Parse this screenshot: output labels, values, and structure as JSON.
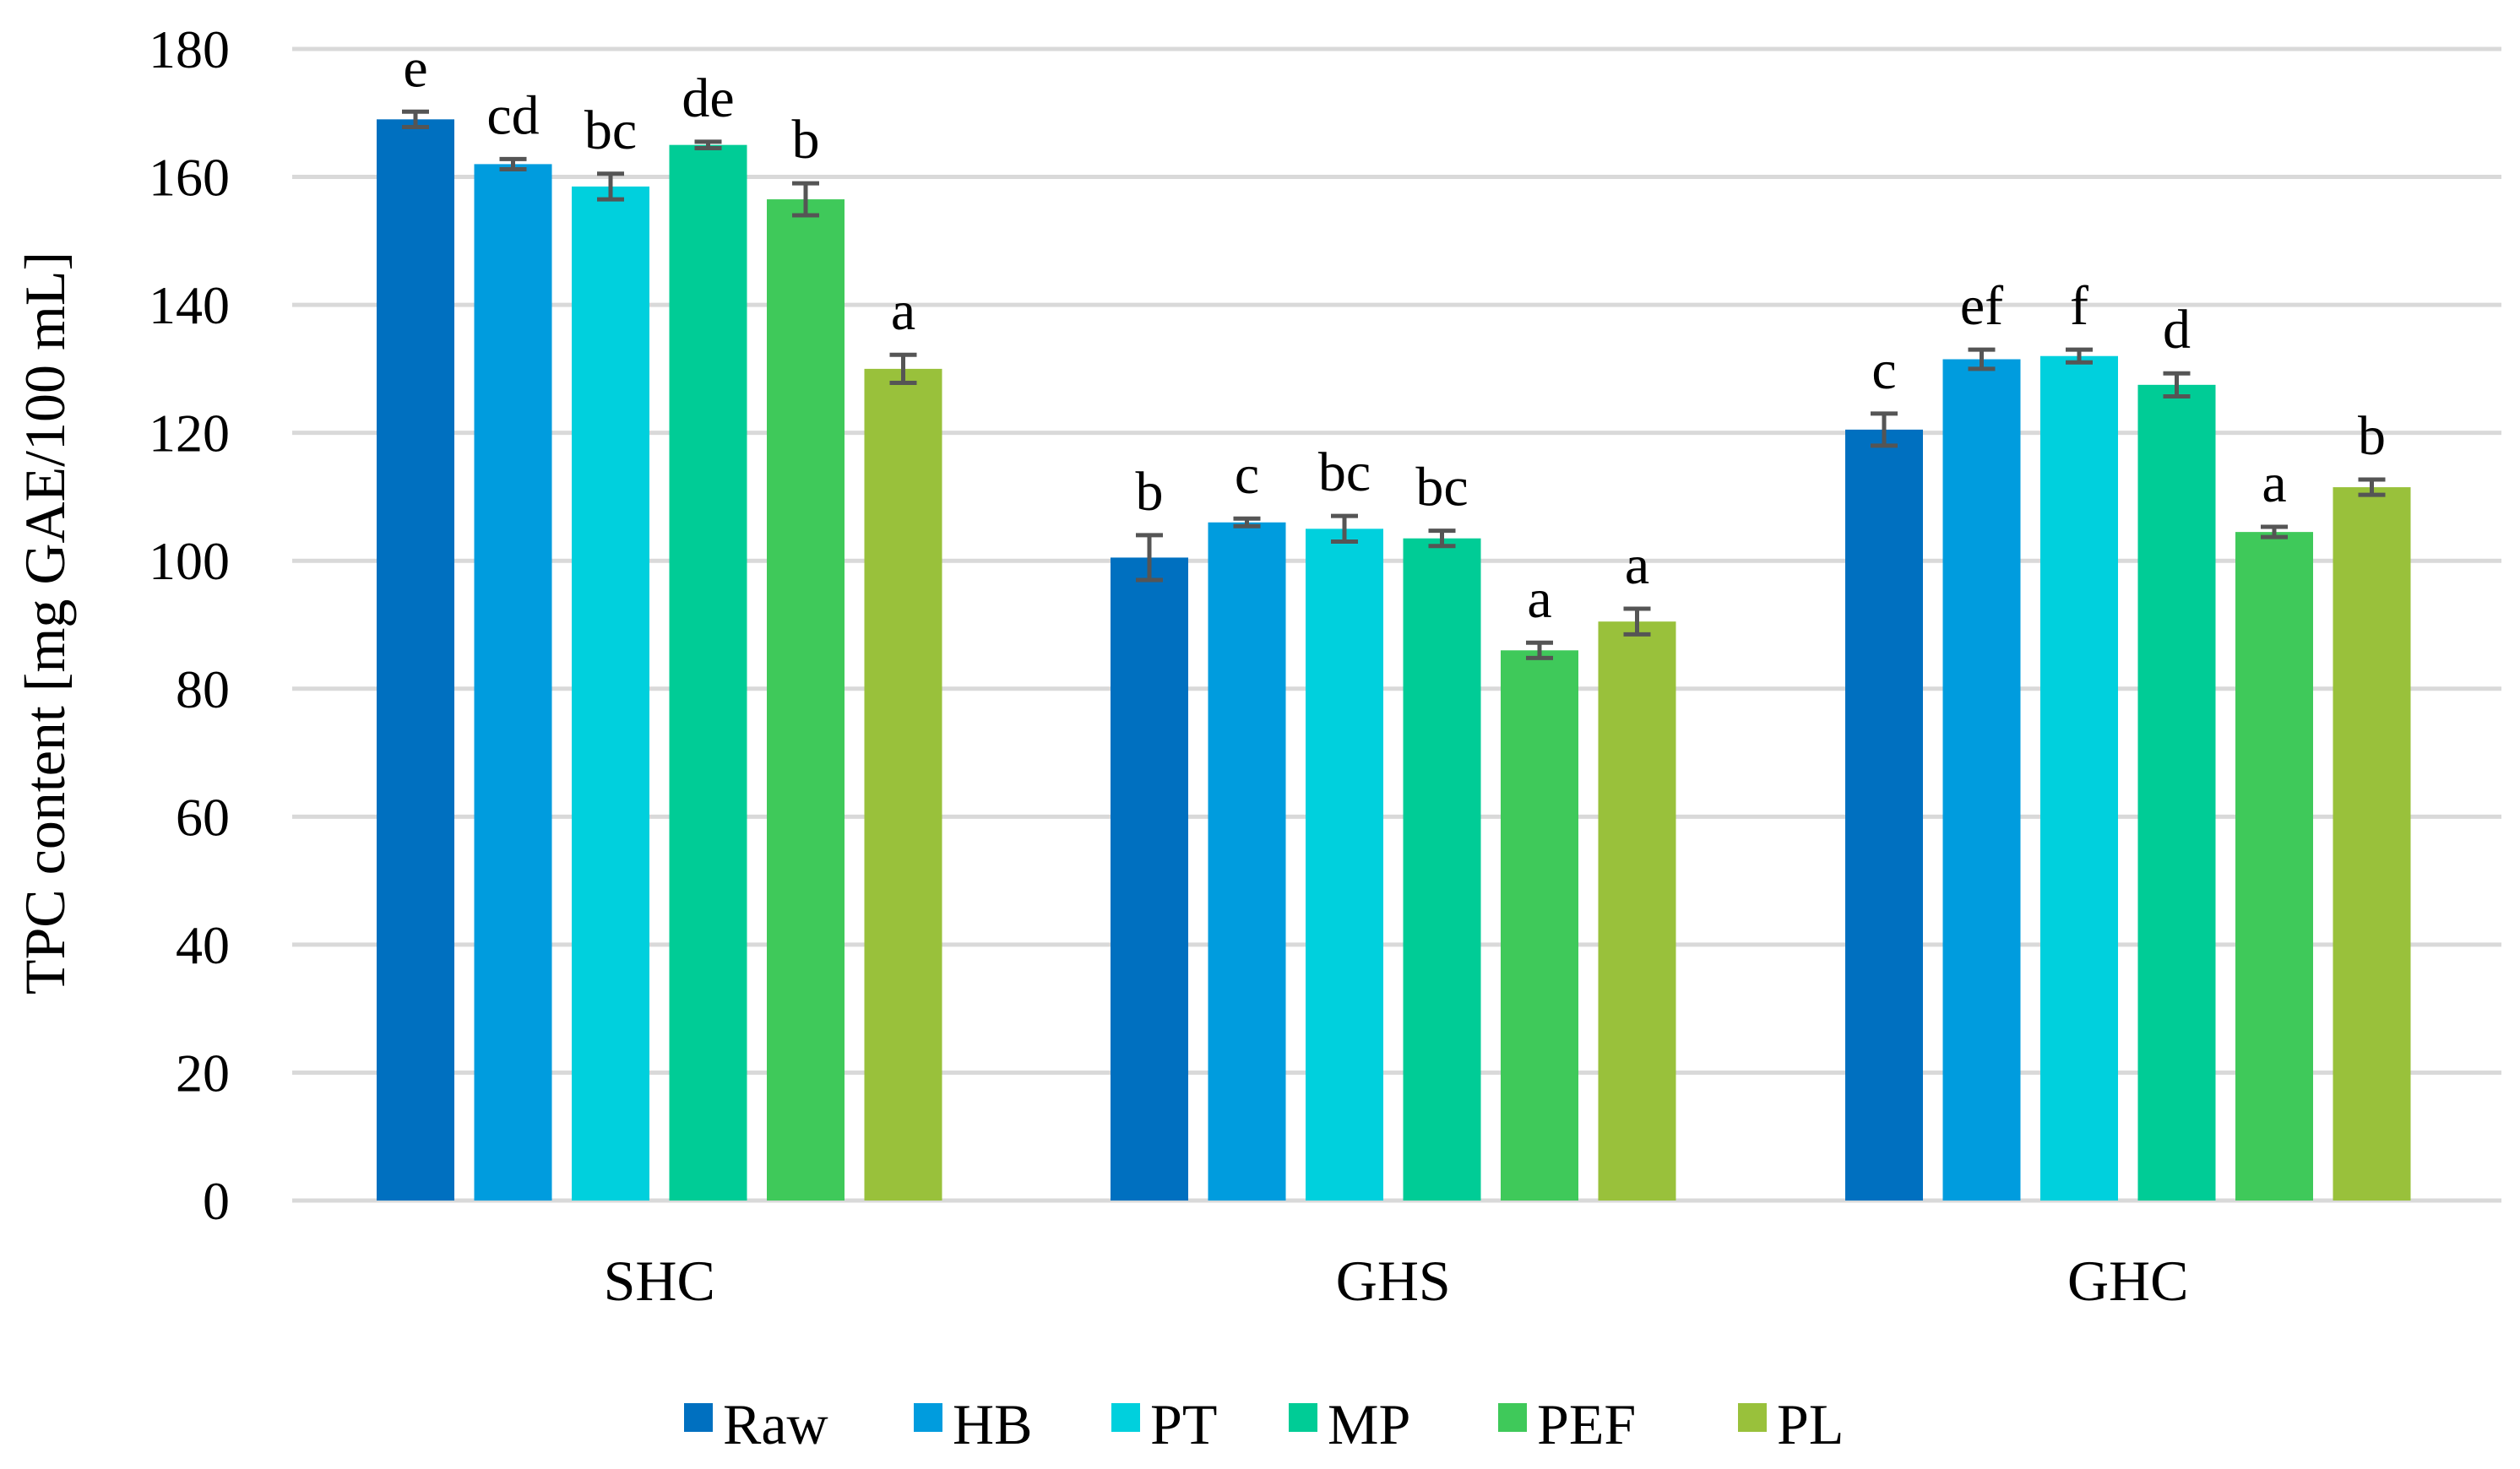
{
  "chart_data": {
    "type": "bar",
    "title": "",
    "xlabel": "",
    "ylabel": "TPC content [mg GAE/100 mL]",
    "ylim": [
      0,
      180
    ],
    "yticks": [
      0,
      20,
      40,
      60,
      80,
      100,
      120,
      140,
      160,
      180
    ],
    "grid": true,
    "legend_position": "bottom",
    "categories": [
      "SHC",
      "GHS",
      "GHC"
    ],
    "series": [
      {
        "name": "Raw",
        "color": "#0070c0",
        "values": [
          169,
          100.5,
          120.5
        ],
        "errors": [
          1.2,
          3.5,
          2.5
        ],
        "letters": [
          "e",
          "b",
          "c"
        ]
      },
      {
        "name": "HB",
        "color": "#009cde",
        "values": [
          162,
          106,
          131.5
        ],
        "errors": [
          0.8,
          0.6,
          1.5
        ],
        "letters": [
          "cd",
          "c",
          "ef"
        ]
      },
      {
        "name": "PT",
        "color": "#00d0dd",
        "values": [
          158.5,
          105,
          132
        ],
        "errors": [
          2.0,
          2.0,
          1.0
        ],
        "letters": [
          "bc",
          "bc",
          "f"
        ]
      },
      {
        "name": "MP",
        "color": "#00cc96",
        "values": [
          165,
          103.5,
          127.5
        ],
        "errors": [
          0.5,
          1.2,
          1.8
        ],
        "letters": [
          "de",
          "bc",
          "d"
        ]
      },
      {
        "name": "PEF",
        "color": "#3fc95a",
        "values": [
          156.5,
          86,
          104.5
        ],
        "errors": [
          2.5,
          1.2,
          0.8
        ],
        "letters": [
          "b",
          "a",
          "a"
        ]
      },
      {
        "name": "PL",
        "color": "#99c13b",
        "values": [
          130,
          90.5,
          111.5
        ],
        "errors": [
          2.2,
          2.0,
          1.2
        ],
        "letters": [
          "a",
          "a",
          "b"
        ]
      }
    ]
  }
}
